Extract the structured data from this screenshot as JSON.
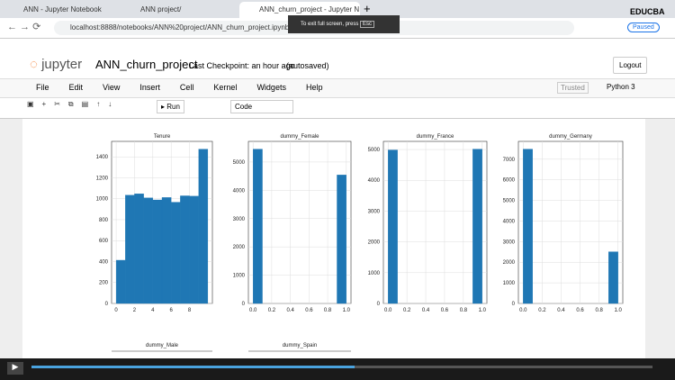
{
  "browser": {
    "tabs": [
      "ANN - Jupyter Notebook",
      "ANN project/",
      "ANN_churn_project - Jupyter N"
    ],
    "url": "localhost:8888/notebooks/ANN%20project/ANN_churn_project.ipynb",
    "toast": "To exit full screen, press",
    "toast_key": "Esc",
    "profile": "Paused",
    "brand": "EDUCBA"
  },
  "header": {
    "logo": "jupyter",
    "notebook": "ANN_churn_project",
    "checkpoint": "Last Checkpoint: an hour ago",
    "autosaved": "(autosaved)",
    "logout": "Logout"
  },
  "menu": [
    "File",
    "Edit",
    "View",
    "Insert",
    "Cell",
    "Kernel",
    "Widgets",
    "Help"
  ],
  "status": {
    "trusted": "Trusted",
    "kernel": "Python 3"
  },
  "toolbar": {
    "run": "Run",
    "cell_type": "Code"
  },
  "output": {
    "charts": [
      {
        "type": "histogram",
        "title": "Tenure",
        "color": "#1f77b4",
        "grid": true,
        "bins": [
          0,
          1,
          2,
          3,
          4,
          5,
          6,
          7,
          8,
          9,
          10
        ],
        "counts": [
          413,
          1035,
          1048,
          1009,
          989,
          1012,
          967,
          1028,
          1025,
          1474
        ],
        "xlim": [
          -0.5,
          10.5
        ],
        "ylim": [
          0,
          1548
        ],
        "xticks": [
          0,
          2,
          4,
          6,
          8
        ],
        "yticks": [
          0,
          200,
          400,
          600,
          800,
          1000,
          1200,
          1400
        ]
      },
      {
        "type": "histogram",
        "title": "dummy_Female",
        "color": "#1f77b4",
        "grid": true,
        "bins": [
          0,
          0.1,
          0.2,
          0.3,
          0.4,
          0.5,
          0.6,
          0.7,
          0.8,
          0.9,
          1
        ],
        "counts": [
          5457,
          0,
          0,
          0,
          0,
          0,
          0,
          0,
          0,
          4543
        ],
        "xlim": [
          -0.05,
          1.05
        ],
        "ylim": [
          0,
          5730
        ],
        "xticks": [
          {
            "value": 0,
            "label": "0.0"
          },
          {
            "value": 0.2,
            "label": "0.2"
          },
          {
            "value": 0.4,
            "label": "0.4"
          },
          {
            "value": 0.6,
            "label": "0.6"
          },
          {
            "value": 0.8,
            "label": "0.8"
          },
          {
            "value": 1,
            "label": "1.0"
          }
        ],
        "yticks": [
          0,
          1000,
          2000,
          3000,
          4000,
          5000
        ]
      },
      {
        "type": "histogram",
        "title": "dummy_France",
        "color": "#1f77b4",
        "grid": true,
        "bins": [
          0,
          0.1,
          0.2,
          0.3,
          0.4,
          0.5,
          0.6,
          0.7,
          0.8,
          0.9,
          1
        ],
        "counts": [
          4986,
          0,
          0,
          0,
          0,
          0,
          0,
          0,
          0,
          5014
        ],
        "xlim": [
          -0.05,
          1.05
        ],
        "ylim": [
          0,
          5265
        ],
        "xticks": [
          {
            "value": 0,
            "label": "0.0"
          },
          {
            "value": 0.2,
            "label": "0.2"
          },
          {
            "value": 0.4,
            "label": "0.4"
          },
          {
            "value": 0.6,
            "label": "0.6"
          },
          {
            "value": 0.8,
            "label": "0.8"
          },
          {
            "value": 1,
            "label": "1.0"
          }
        ],
        "yticks": [
          0,
          1000,
          2000,
          3000,
          4000,
          5000
        ]
      },
      {
        "type": "histogram",
        "title": "dummy_Germany",
        "color": "#1f77b4",
        "grid": true,
        "bins": [
          0,
          0.1,
          0.2,
          0.3,
          0.4,
          0.5,
          0.6,
          0.7,
          0.8,
          0.9,
          1
        ],
        "counts": [
          7491,
          0,
          0,
          0,
          0,
          0,
          0,
          0,
          0,
          2509
        ],
        "xlim": [
          -0.05,
          1.05
        ],
        "ylim": [
          0,
          7866
        ],
        "xticks": [
          {
            "value": 0,
            "label": "0.0"
          },
          {
            "value": 0.2,
            "label": "0.2"
          },
          {
            "value": 0.4,
            "label": "0.4"
          },
          {
            "value": 0.6,
            "label": "0.6"
          },
          {
            "value": 0.8,
            "label": "0.8"
          },
          {
            "value": 1,
            "label": "1.0"
          }
        ],
        "yticks": [
          0,
          1000,
          2000,
          3000,
          4000,
          5000,
          6000,
          7000
        ]
      }
    ],
    "next_titles": [
      "dummy_Male",
      "dummy_Spain"
    ]
  }
}
